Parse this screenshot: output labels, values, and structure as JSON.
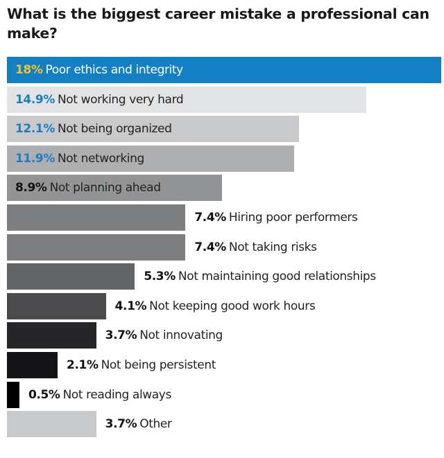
{
  "chart_data": {
    "type": "bar",
    "orientation": "horizontal",
    "title": "What is the biggest career mistake a professional can make?",
    "unit": "%",
    "categories": [
      "Poor ethics and integrity",
      "Not working very hard",
      "Not being organized",
      "Not networking",
      "Not planning ahead",
      "Hiring poor performers",
      "Not taking risks",
      "Not maintaining good relationships",
      "Not keeping good work hours",
      "Not innovating",
      "Not being persistent",
      "Not reading always",
      "Other"
    ],
    "values": [
      18,
      14.9,
      12.1,
      11.9,
      8.9,
      7.4,
      7.4,
      5.3,
      4.1,
      3.7,
      2.1,
      0.5,
      3.7
    ],
    "value_labels": [
      "18%",
      "14.9%",
      "12.1%",
      "11.9%",
      "8.9%",
      "7.4%",
      "7.4%",
      "5.3%",
      "4.1%",
      "3.7%",
      "2.1%",
      "0.5%",
      "3.7%"
    ],
    "bar_colors": [
      "#1380c4",
      "#e2e3e5",
      "#c8c9cb",
      "#aeafb1",
      "#939496",
      "#7d7e80",
      "#7d7e80",
      "#636466",
      "#4b4b4d",
      "#262628",
      "#141416",
      "#000000",
      "#c8c9cb"
    ],
    "value_label_colors": [
      "#f2c230",
      "#1c7ec2",
      "#1c7ec2",
      "#1c7ec2",
      "#111111",
      "#111111",
      "#111111",
      "#111111",
      "#111111",
      "#111111",
      "#111111",
      "#111111",
      "#111111"
    ],
    "label_colors": [
      "#ffffff",
      "#222222",
      "#222222",
      "#222222",
      "#222222",
      "#222222",
      "#222222",
      "#222222",
      "#222222",
      "#222222",
      "#222222",
      "#222222",
      "#222222"
    ],
    "xlim": [
      0,
      18
    ],
    "grid": false
  }
}
